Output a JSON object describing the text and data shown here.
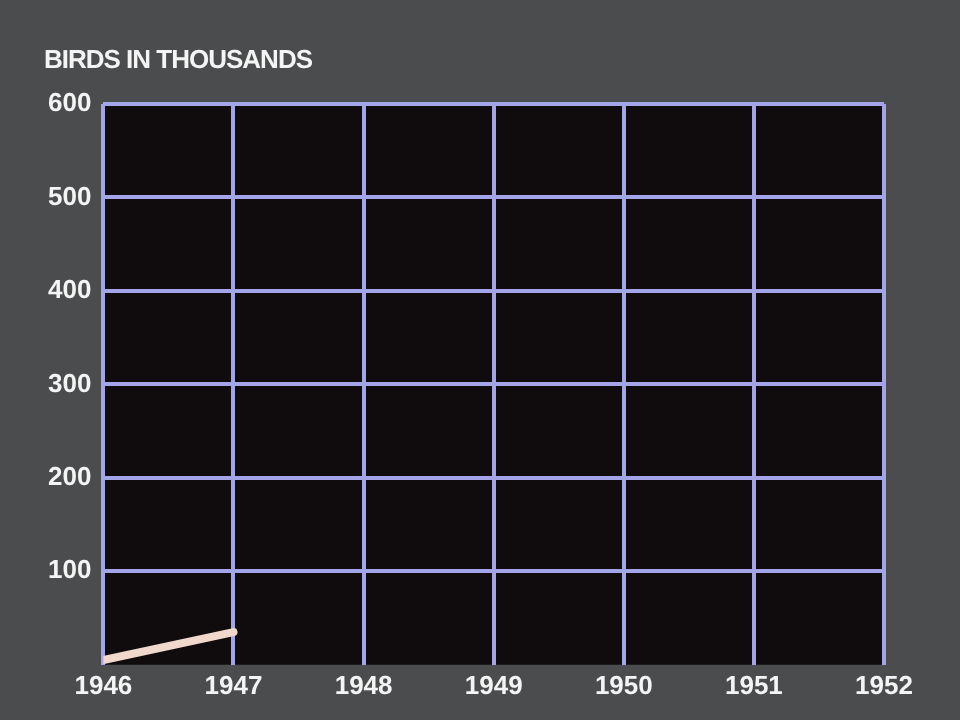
{
  "chart_data": {
    "type": "line",
    "ylabel": "BIRDS IN THOUSANDS",
    "x": [
      1946,
      1947
    ],
    "series": [
      {
        "color": "#f0d8cc",
        "values": [
          5,
          35
        ]
      }
    ],
    "xlim": [
      1946,
      1952
    ],
    "xticks": [
      1946,
      1947,
      1948,
      1949,
      1950,
      1951,
      1952
    ],
    "ylim": [
      0,
      600
    ],
    "yticks": [
      100,
      200,
      300,
      400,
      500,
      600
    ],
    "grid": true,
    "legend": false,
    "marker": "none",
    "line_style": "solid"
  }
}
